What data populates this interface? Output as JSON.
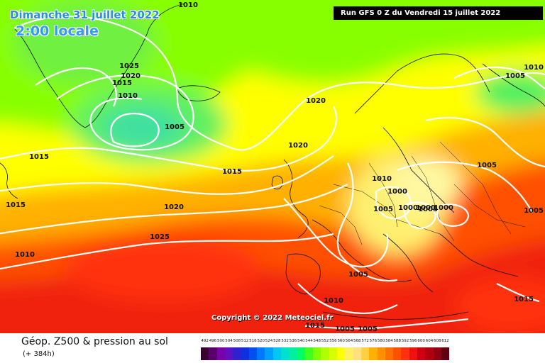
{
  "header": {
    "date": "Dimanche 31 juillet 2022",
    "local_time": "2:00 locale",
    "run": "Run GFS 0 Z du Vendredi 15 juillet 2022"
  },
  "copyright": "Copyright © 2022 Meteociel.fr",
  "footer": {
    "product": "Géop. Z500 & pression au sol",
    "lead_time": "(+ 384h)"
  },
  "legend": {
    "unit_note": "",
    "levels": [
      "492",
      "496",
      "500",
      "504",
      "508",
      "512",
      "516",
      "520",
      "524",
      "528",
      "532",
      "536",
      "540",
      "544",
      "548",
      "552",
      "556",
      "560",
      "564",
      "568",
      "572",
      "576",
      "580",
      "584",
      "588",
      "592",
      "596",
      "600",
      "604",
      "608",
      "612"
    ],
    "colors": [
      "#3a0030",
      "#5a006a",
      "#7a00aa",
      "#6010c0",
      "#3020d0",
      "#1030e0",
      "#0050f0",
      "#0078ff",
      "#00a0ff",
      "#00c8f0",
      "#00e0d0",
      "#00f0a0",
      "#00ff60",
      "#40ff20",
      "#80ff00",
      "#b0ff00",
      "#d8ff00",
      "#ffff00",
      "#fff060",
      "#ffe080",
      "#ffd040",
      "#ffb000",
      "#ff9000",
      "#ff7000",
      "#ff5000",
      "#ff3010",
      "#f01010",
      "#d00010",
      "#b00010",
      "#900010",
      "#600010"
    ]
  },
  "isobars": [
    "1010",
    "1025",
    "1020",
    "1015",
    "1010",
    "1005",
    "1020",
    "1020",
    "1015",
    "1015",
    "1015",
    "1020",
    "1025",
    "1010",
    "1005",
    "1010",
    "1005",
    "1010",
    "1000",
    "1000",
    "1000",
    "1000",
    "1005",
    "1010",
    "1015",
    "1015",
    "1005",
    "1005",
    "1005",
    "1005",
    "1005"
  ]
}
